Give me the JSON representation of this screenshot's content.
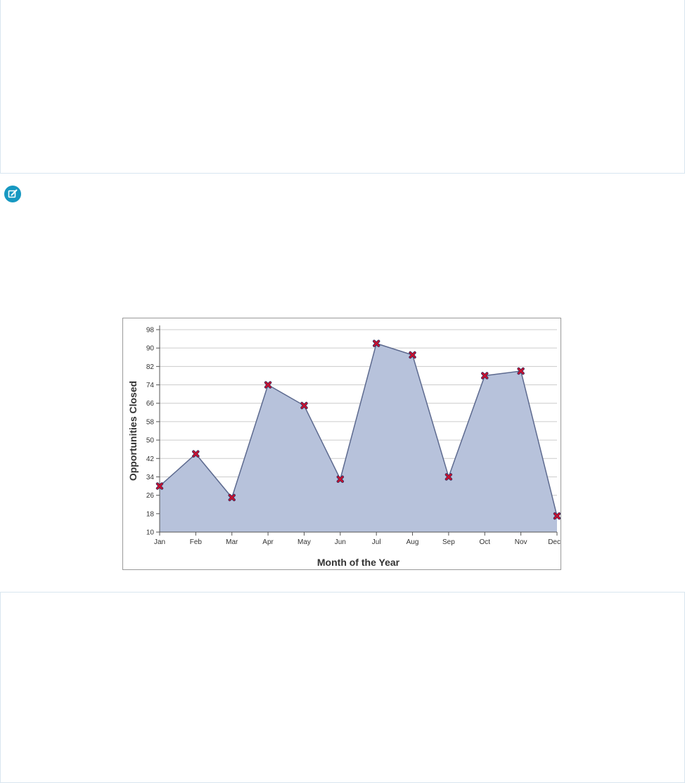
{
  "icons": {
    "note": "edit-note-icon"
  },
  "colors": {
    "area_fill": "#b7c2db",
    "area_line": "#5d6a8f",
    "marker": "#c8102e",
    "grid": "#cccccc",
    "box_border": "#d8e6f0",
    "note_icon": "#1798c1"
  },
  "chart_data": {
    "type": "area",
    "xlabel": "Month of the Year",
    "ylabel": "Opportunities Closed",
    "categories": [
      "Jan",
      "Feb",
      "Mar",
      "Apr",
      "May",
      "Jun",
      "Jul",
      "Aug",
      "Sep",
      "Oct",
      "Nov",
      "Dec"
    ],
    "values": [
      30,
      44,
      25,
      74,
      65,
      33,
      92,
      87,
      34,
      78,
      80,
      17
    ],
    "yticks": [
      "10",
      "18",
      "26",
      "34",
      "42",
      "50",
      "58",
      "66",
      "74",
      "82",
      "90",
      "98"
    ],
    "ylim": [
      10,
      98
    ],
    "grid": true,
    "legend": "none",
    "markers": "x"
  }
}
